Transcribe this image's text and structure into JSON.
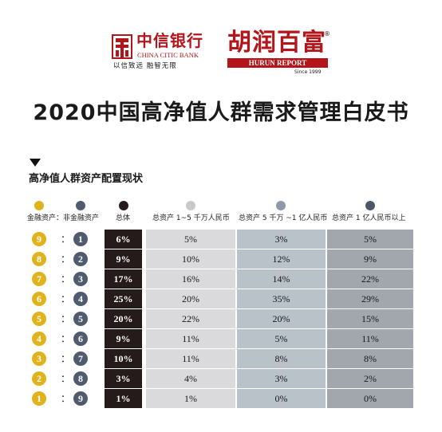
{
  "logos": {
    "citic_cn": "中信银行",
    "citic_en": "CHINA CITIC BANK",
    "citic_slogan": "以信致远  融智无限",
    "hurun_cn": "胡润百富",
    "hurun_reg": "®",
    "hurun_en": "HURUN REPORT",
    "hurun_since": "Since 1999"
  },
  "title": "2020中国高净值人群需求管理白皮书",
  "subtitle": "高净值人群资产配置现状",
  "colors": {
    "brand_red": "#b3151b",
    "financial_dot": "#e0b31c",
    "nonfinancial_dot": "#4f5b6e",
    "total_dot": "#251b1b",
    "tier1_dot": "#c9c9cb",
    "tier2_dot": "#8e9aaa",
    "tier3_dot": "#4b5667"
  },
  "chart_data": {
    "type": "table",
    "title": "高净值人群资产配置现状",
    "ratio_header": {
      "financial": "金融资产",
      "separator": "：",
      "nonfinancial": "非金融资产"
    },
    "columns": [
      "总体",
      "总资产 1~5 千万人民币",
      "总资产 5 千万 ~1 亿人民币",
      "总资产 1 亿人民币以上"
    ],
    "rows": [
      {
        "financial": "9",
        "separator": "：",
        "nonfinancial": "1",
        "total": "6%",
        "tier1": "5%",
        "tier2": "3%",
        "tier3": "5%"
      },
      {
        "financial": "8",
        "separator": "：",
        "nonfinancial": "2",
        "total": "9%",
        "tier1": "10%",
        "tier2": "12%",
        "tier3": "9%"
      },
      {
        "financial": "7",
        "separator": "：",
        "nonfinancial": "3",
        "total": "17%",
        "tier1": "16%",
        "tier2": "14%",
        "tier3": "22%"
      },
      {
        "financial": "6",
        "separator": "：",
        "nonfinancial": "4",
        "total": "25%",
        "tier1": "20%",
        "tier2": "35%",
        "tier3": "29%"
      },
      {
        "financial": "5",
        "separator": "：",
        "nonfinancial": "5",
        "total": "20%",
        "tier1": "22%",
        "tier2": "20%",
        "tier3": "15%"
      },
      {
        "financial": "4",
        "separator": "：",
        "nonfinancial": "6",
        "total": "9%",
        "tier1": "11%",
        "tier2": "5%",
        "tier3": "11%"
      },
      {
        "financial": "3",
        "separator": "：",
        "nonfinancial": "7",
        "total": "10%",
        "tier1": "11%",
        "tier2": "8%",
        "tier3": "8%"
      },
      {
        "financial": "2",
        "separator": "：",
        "nonfinancial": "8",
        "total": "3%",
        "tier1": "4%",
        "tier2": "3%",
        "tier3": "2%"
      },
      {
        "financial": "1",
        "separator": "：",
        "nonfinancial": "9",
        "total": "1%",
        "tier1": "1%",
        "tier2": "0%",
        "tier3": "0%"
      }
    ]
  }
}
